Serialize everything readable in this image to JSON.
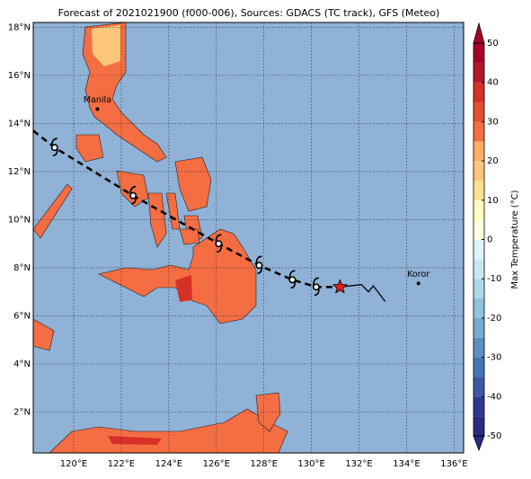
{
  "map": {
    "title": "Forecast of 2021021900 (f000-006), Sources: GDACS (TC track), GFS (Meteo)",
    "lonlim": [
      118.3,
      136.4
    ],
    "latlim": [
      0.3,
      18.2
    ],
    "lon_ticks": [
      {
        "value": 120,
        "label": "120°E"
      },
      {
        "value": 122,
        "label": "122°E"
      },
      {
        "value": 124,
        "label": "124°E"
      },
      {
        "value": 126,
        "label": "126°E"
      },
      {
        "value": 128,
        "label": "128°E"
      },
      {
        "value": 130,
        "label": "130°E"
      },
      {
        "value": 132,
        "label": "132°E"
      },
      {
        "value": 134,
        "label": "134°E"
      },
      {
        "value": 136,
        "label": "136°E"
      }
    ],
    "lat_ticks": [
      {
        "value": 2,
        "label": "2°N"
      },
      {
        "value": 4,
        "label": "4°N"
      },
      {
        "value": 6,
        "label": "6°N"
      },
      {
        "value": 8,
        "label": "8°N"
      },
      {
        "value": 10,
        "label": "10°N"
      },
      {
        "value": 12,
        "label": "12°N"
      },
      {
        "value": 14,
        "label": "14°N"
      },
      {
        "value": 16,
        "label": "16°N"
      },
      {
        "value": 18,
        "label": "18°N"
      }
    ],
    "grid": true,
    "cities": [
      {
        "name": "Manila",
        "lon": 121.0,
        "lat": 14.6
      },
      {
        "name": "Koror",
        "lon": 134.5,
        "lat": 7.35
      }
    ],
    "forecast_track": [
      {
        "lon": 118.3,
        "lat": 13.7
      },
      {
        "lon": 119.2,
        "lat": 13.0
      },
      {
        "lon": 122.5,
        "lat": 11.0
      },
      {
        "lon": 126.1,
        "lat": 9.0
      },
      {
        "lon": 127.8,
        "lat": 8.1
      },
      {
        "lon": 129.2,
        "lat": 7.5
      },
      {
        "lon": 130.2,
        "lat": 7.2
      },
      {
        "lon": 131.2,
        "lat": 7.2
      }
    ],
    "observed_track": [
      {
        "lon": 131.2,
        "lat": 7.2
      },
      {
        "lon": 132.1,
        "lat": 7.3
      },
      {
        "lon": 132.4,
        "lat": 7.0
      },
      {
        "lon": 132.6,
        "lat": 7.25
      },
      {
        "lon": 133.1,
        "lat": 6.6
      }
    ],
    "current_position": {
      "lon": 131.2,
      "lat": 7.2
    },
    "colorbar": {
      "label": "Max Temperature (°C)",
      "lim": [
        -50,
        50
      ],
      "ticks": [
        -50,
        -40,
        -30,
        -20,
        -10,
        0,
        10,
        20,
        30,
        40,
        50
      ],
      "colors": [
        "#2a2c84",
        "#313695",
        "#3d58a6",
        "#4575b4",
        "#5d90c3",
        "#74add1",
        "#90c3dd",
        "#abd9e9",
        "#c9e7f1",
        "#e0f3f8",
        "#fefee0",
        "#ffffbf",
        "#fee090",
        "#fdc679",
        "#fdae61",
        "#f46d43",
        "#e04f32",
        "#d73027",
        "#b5172a",
        "#a50026"
      ]
    }
  }
}
